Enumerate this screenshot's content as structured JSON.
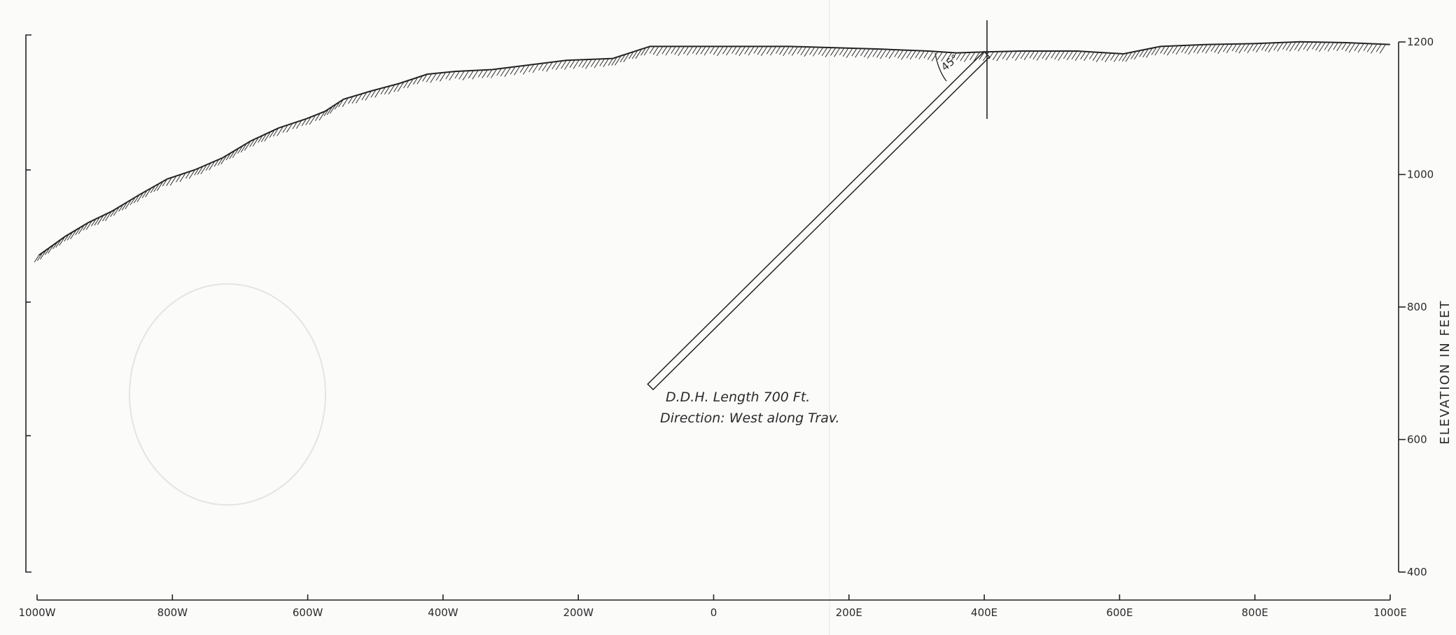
{
  "axis_title": "ELEVATION IN FEET",
  "x_labels": [
    "1000W",
    "800W",
    "600W",
    "400W",
    "200W",
    "0",
    "200E",
    "400E",
    "600E",
    "800E",
    "1000E"
  ],
  "y_labels": [
    "1200",
    "1000",
    "800",
    "600",
    "400"
  ],
  "annotations": {
    "angle": "45°",
    "hole_length": "D.D.H. Length 700 Ft.",
    "direction": "Direction: West along Trav."
  }
}
